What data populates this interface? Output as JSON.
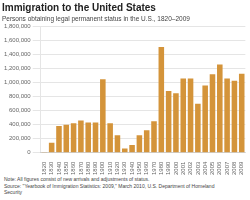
{
  "chart_data": {
    "type": "bar",
    "title": "Immigration to the United States",
    "subtitle": "Persons obtaining legal permanent status in the U.S., 1820–2009",
    "note": "Note: All figures consist of new arrivals and adjustments of status.\nSource: \"Yearbook of Immigration Statistics: 2009,\" March 2010, U.S. Department of Homeland\nSecurity",
    "categories": [
      "1820",
      "1830",
      "1840",
      "1850",
      "1860",
      "1870",
      "1880",
      "1890",
      "1900",
      "1910",
      "1920",
      "1930",
      "1940",
      "1950",
      "1960",
      "1970",
      "1980",
      "1990",
      "2000",
      "2001",
      "2002",
      "2003",
      "2004",
      "2005",
      "2006",
      "2007",
      "2008",
      "2009"
    ],
    "values": [
      8000,
      143000,
      380000,
      400000,
      420000,
      460000,
      430000,
      430000,
      1050000,
      420000,
      250000,
      60000,
      110000,
      250000,
      320000,
      450000,
      1510000,
      880000,
      850000,
      1060000,
      1060000,
      700000,
      960000,
      1120000,
      1260000,
      1060000,
      1030000,
      1130000
    ],
    "color": "#D4943A",
    "ylim": [
      0,
      1800000
    ],
    "yticks": [
      0,
      {
        "value": 200000,
        "label": "200,000"
      },
      {
        "value": 400000,
        "label": "400,000"
      },
      {
        "value": 600000,
        "label": "600,000"
      },
      {
        "value": 800000,
        "label": "800,000"
      },
      {
        "value": 1000000,
        "label": "1,000,000"
      },
      {
        "value": 1200000,
        "label": "1,200,000"
      },
      {
        "value": 1400000,
        "label": "1,400,000"
      },
      {
        "value": 1600000,
        "label": "1,600,000"
      },
      {
        "value": 1800000,
        "label": "1,800,000"
      }
    ],
    "grid": true
  }
}
